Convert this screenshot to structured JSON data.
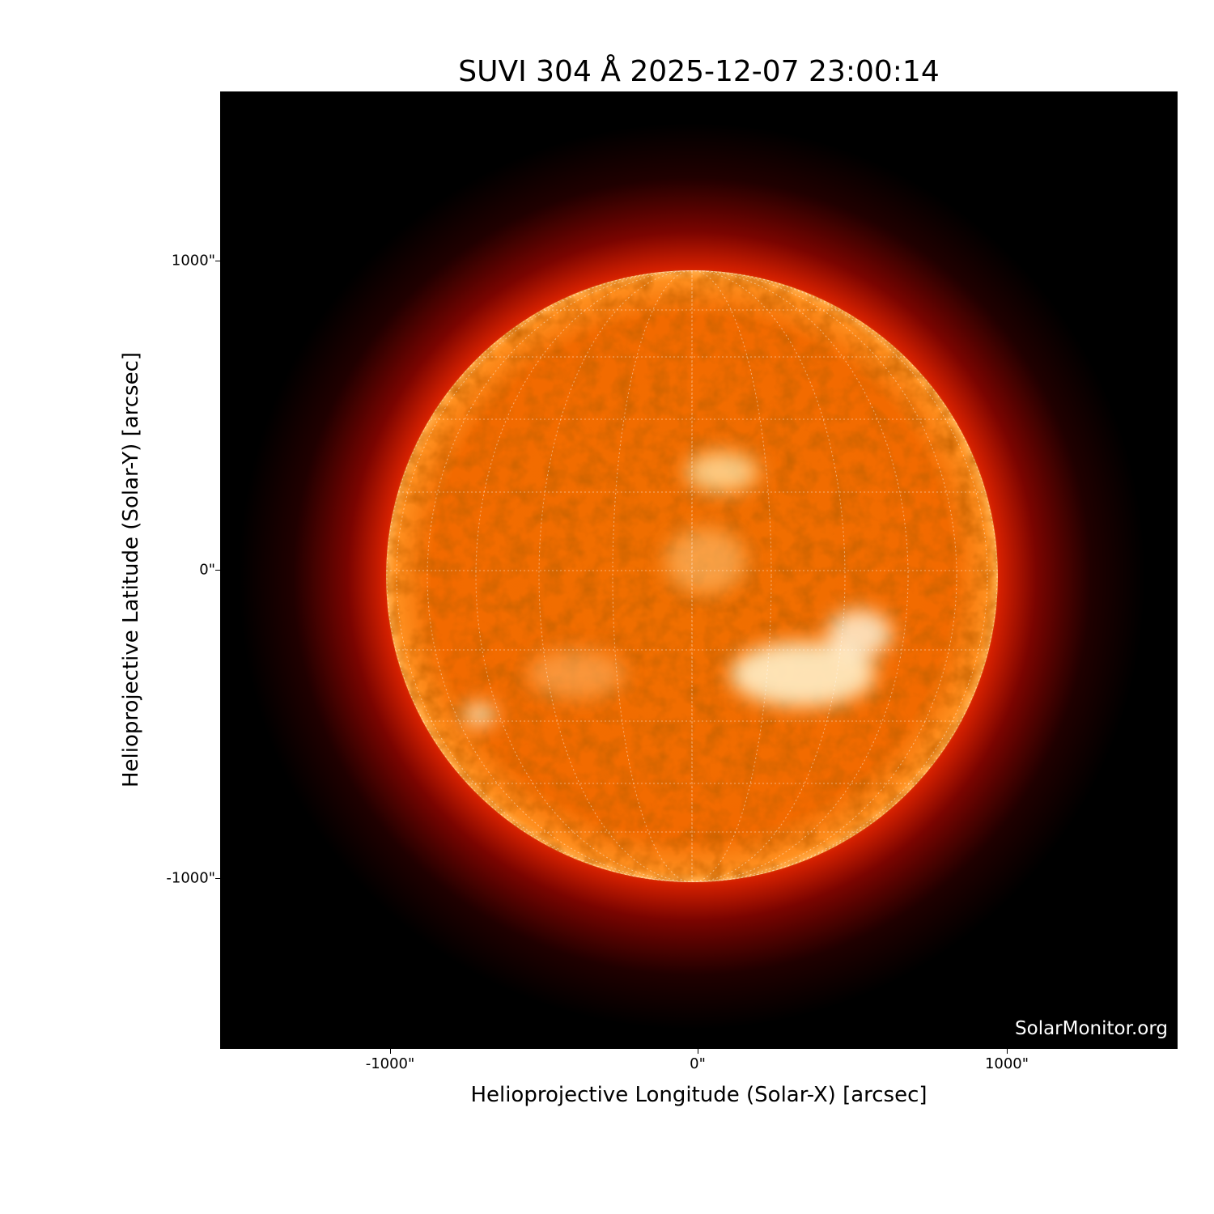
{
  "title": "SUVI 304 Å 2025-12-07 23:00:14",
  "xlabel": "Helioprojective Longitude (Solar-X) [arcsec]",
  "ylabel": "Helioprojective Latitude (Solar-Y) [arcsec]",
  "xticks": [
    "-1000\"",
    "0\"",
    "1000\""
  ],
  "yticks": [
    "1000\"",
    "0\"",
    "-1000\""
  ],
  "watermark": "SolarMonitor.org",
  "colors": {
    "background": "#000000",
    "disk": "#ff6a00",
    "corona": "#b01000",
    "bright": "#fff4d8",
    "grid": "#ffffff"
  },
  "grid": "dotted heliographic lat/lon grid"
}
